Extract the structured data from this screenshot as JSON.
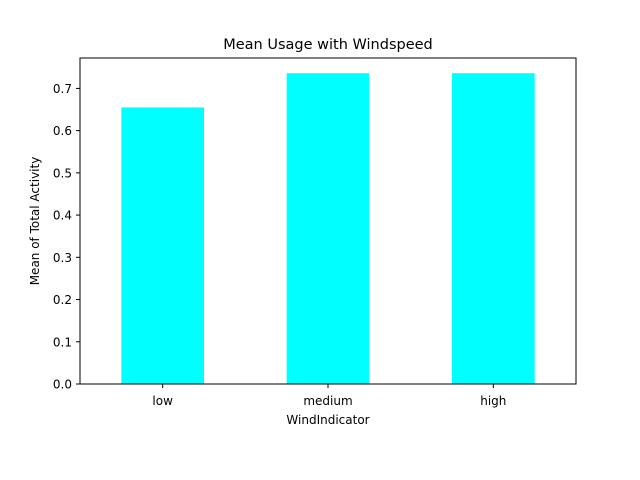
{
  "chart_data": {
    "type": "bar",
    "title": "Mean Usage with Windspeed",
    "xlabel": "WindIndicator",
    "ylabel": "Mean of Total Activity",
    "categories": [
      "low",
      "medium",
      "high"
    ],
    "values": [
      0.655,
      0.736,
      0.736
    ],
    "ylim": [
      0,
      0.772
    ],
    "yticks": [
      0.0,
      0.1,
      0.2,
      0.3,
      0.4,
      0.5,
      0.6,
      0.7
    ],
    "ytick_labels": [
      "0.0",
      "0.1",
      "0.2",
      "0.3",
      "0.4",
      "0.5",
      "0.6",
      "0.7"
    ],
    "bar_color": "#00ffff",
    "grid": false,
    "legend": false
  }
}
